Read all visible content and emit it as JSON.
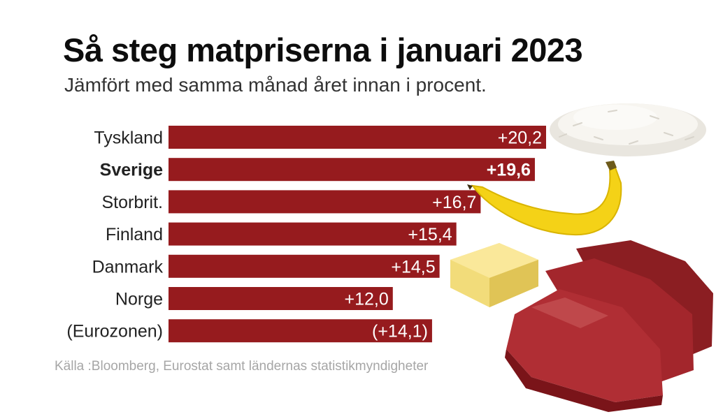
{
  "header": {
    "title": "Så steg matpriserna i januari 2023",
    "subtitle": "Jämfört med samma månad året innan i procent."
  },
  "source": "Källa :Bloomberg, Eurostat samt ländernas statistikmyndigheter",
  "colors": {
    "bar": "#961b1e",
    "bar_label": "#ffffff",
    "category_label": "#222222"
  },
  "decorations": [
    "rice-icon",
    "banana-icon",
    "butter-icon",
    "meat-icon"
  ],
  "chart_data": {
    "type": "bar",
    "orientation": "horizontal",
    "categories": [
      "Tyskland",
      "Sverige",
      "Storbrit.",
      "Finland",
      "Danmark",
      "Norge",
      "(Eurozonen)"
    ],
    "values": [
      20.2,
      19.6,
      16.7,
      15.4,
      14.5,
      12.0,
      14.1
    ],
    "value_labels": [
      "+20,2",
      "+19,6",
      "+16,7",
      "+15,4",
      "+14,5",
      "+12,0",
      "(+14,1)"
    ],
    "highlighted": "Sverige",
    "xlim": [
      0,
      20.2
    ],
    "grid": false,
    "legend": "none"
  }
}
